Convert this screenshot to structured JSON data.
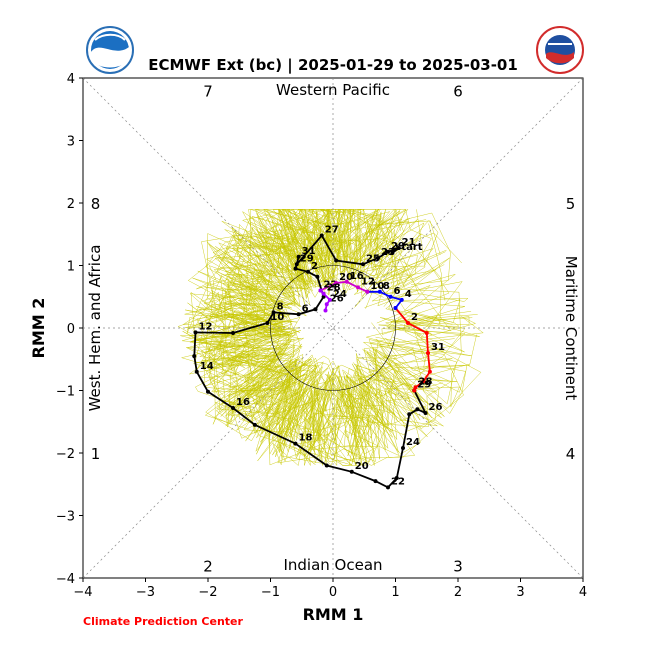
{
  "chart_data": {
    "type": "line",
    "title": "ECMWF Ext (bc) | 2025-01-29 to 2025-03-01",
    "xlabel": "RMM 1",
    "ylabel": "RMM 2",
    "xlim": [
      -4,
      4
    ],
    "ylim": [
      -4,
      4
    ],
    "x_ticks": [
      "−4",
      "−3",
      "−2",
      "−1",
      "0",
      "1",
      "2",
      "3",
      "4"
    ],
    "y_ticks": [
      "−4",
      "−3",
      "−2",
      "−1",
      "0",
      "1",
      "2",
      "3",
      "4"
    ],
    "grid": false,
    "region_labels": {
      "top": "Western Pacific",
      "bottom": "Indian Ocean",
      "left": "West. Hem. and Africa",
      "right": "Maritime Continent"
    },
    "phase_numbers": [
      {
        "label": "7",
        "x": -2.0,
        "y": 3.8
      },
      {
        "label": "6",
        "x": 2.0,
        "y": 3.8
      },
      {
        "label": "8",
        "x": -3.8,
        "y": 2.0
      },
      {
        "label": "5",
        "x": 3.8,
        "y": 2.0
      },
      {
        "label": "1",
        "x": -3.8,
        "y": -2.0
      },
      {
        "label": "4",
        "x": 3.8,
        "y": -2.0
      },
      {
        "label": "2",
        "x": -2.0,
        "y": -3.8
      },
      {
        "label": "3",
        "x": 2.0,
        "y": -3.8
      }
    ],
    "series": [
      {
        "color": "#000000",
        "points": [
          {
            "x": 0.95,
            "y": 1.2,
            "label": "start"
          },
          {
            "x": 1.05,
            "y": 1.28,
            "label": "21"
          },
          {
            "x": 0.88,
            "y": 1.22,
            "label": "29"
          },
          {
            "x": 0.72,
            "y": 1.12,
            "label": "23"
          },
          {
            "x": 0.48,
            "y": 1.02,
            "label": "25"
          },
          {
            "x": 0.05,
            "y": 1.08,
            "label": ""
          },
          {
            "x": -0.18,
            "y": 1.48,
            "label": "27"
          },
          {
            "x": -0.58,
            "y": 1.02,
            "label": "29"
          },
          {
            "x": -0.55,
            "y": 1.14,
            "label": "31"
          },
          {
            "x": -0.6,
            "y": 0.95,
            "label": ""
          },
          {
            "x": -0.4,
            "y": 0.9,
            "label": "2"
          },
          {
            "x": -0.25,
            "y": 0.82,
            "label": ""
          },
          {
            "x": -0.15,
            "y": 0.5,
            "label": ""
          },
          {
            "x": -0.28,
            "y": 0.3,
            "label": ""
          },
          {
            "x": -0.55,
            "y": 0.22,
            "label": "6"
          },
          {
            "x": -0.95,
            "y": 0.25,
            "label": "8"
          },
          {
            "x": -1.05,
            "y": 0.08,
            "label": "10"
          },
          {
            "x": -1.6,
            "y": -0.08,
            "label": ""
          },
          {
            "x": -2.2,
            "y": -0.07,
            "label": "12"
          },
          {
            "x": -2.22,
            "y": -0.45,
            "label": ""
          },
          {
            "x": -2.18,
            "y": -0.7,
            "label": "14"
          },
          {
            "x": -2.0,
            "y": -1.02,
            "label": ""
          },
          {
            "x": -1.6,
            "y": -1.28,
            "label": "16"
          },
          {
            "x": -1.25,
            "y": -1.55,
            "label": ""
          },
          {
            "x": -0.6,
            "y": -1.85,
            "label": "18"
          },
          {
            "x": -0.1,
            "y": -2.2,
            "label": ""
          },
          {
            "x": 0.3,
            "y": -2.3,
            "label": "20"
          },
          {
            "x": 0.68,
            "y": -2.45,
            "label": ""
          },
          {
            "x": 0.88,
            "y": -2.55,
            "label": "22"
          },
          {
            "x": 1.02,
            "y": -2.4,
            "label": ""
          },
          {
            "x": 1.12,
            "y": -1.92,
            "label": "24"
          },
          {
            "x": 1.22,
            "y": -1.38,
            "label": ""
          },
          {
            "x": 1.35,
            "y": -1.3,
            "label": ""
          },
          {
            "x": 1.48,
            "y": -1.36,
            "label": "26"
          },
          {
            "x": 1.3,
            "y": -1.0,
            "label": ""
          }
        ]
      },
      {
        "color": "#ff0000",
        "points": [
          {
            "x": 1.0,
            "y": 0.32,
            "label": ""
          },
          {
            "x": 1.2,
            "y": 0.08,
            "label": "2"
          },
          {
            "x": 1.5,
            "y": -0.08,
            "label": ""
          },
          {
            "x": 1.52,
            "y": -0.4,
            "label": "31"
          },
          {
            "x": 1.55,
            "y": -0.7,
            "label": ""
          },
          {
            "x": 1.45,
            "y": -0.85,
            "label": ""
          },
          {
            "x": 1.32,
            "y": -0.95,
            "label": "28"
          },
          {
            "x": 1.3,
            "y": -1.0,
            "label": "29"
          }
        ]
      },
      {
        "color": "#0000ff",
        "points": [
          {
            "x": 0.55,
            "y": 0.58,
            "label": "10"
          },
          {
            "x": 0.75,
            "y": 0.58,
            "label": "8"
          },
          {
            "x": 0.92,
            "y": 0.5,
            "label": "6"
          },
          {
            "x": 1.1,
            "y": 0.45,
            "label": "4"
          },
          {
            "x": 1.0,
            "y": 0.32,
            "label": ""
          }
        ]
      },
      {
        "color": "#cc00cc",
        "points": [
          {
            "x": -0.2,
            "y": 0.6,
            "label": "22"
          },
          {
            "x": 0.05,
            "y": 0.72,
            "label": "20"
          },
          {
            "x": 0.22,
            "y": 0.74,
            "label": "16"
          },
          {
            "x": 0.4,
            "y": 0.65,
            "label": "12"
          },
          {
            "x": 0.55,
            "y": 0.58,
            "label": ""
          }
        ]
      },
      {
        "color": "#aa00ff",
        "points": [
          {
            "x": -0.12,
            "y": 0.28,
            "label": ""
          },
          {
            "x": -0.1,
            "y": 0.38,
            "label": "26"
          },
          {
            "x": -0.05,
            "y": 0.45,
            "label": "24"
          },
          {
            "x": -0.15,
            "y": 0.55,
            "label": "28"
          },
          {
            "x": -0.2,
            "y": 0.6,
            "label": ""
          }
        ]
      }
    ]
  },
  "footer": {
    "credit": "Climate Prediction Center"
  }
}
